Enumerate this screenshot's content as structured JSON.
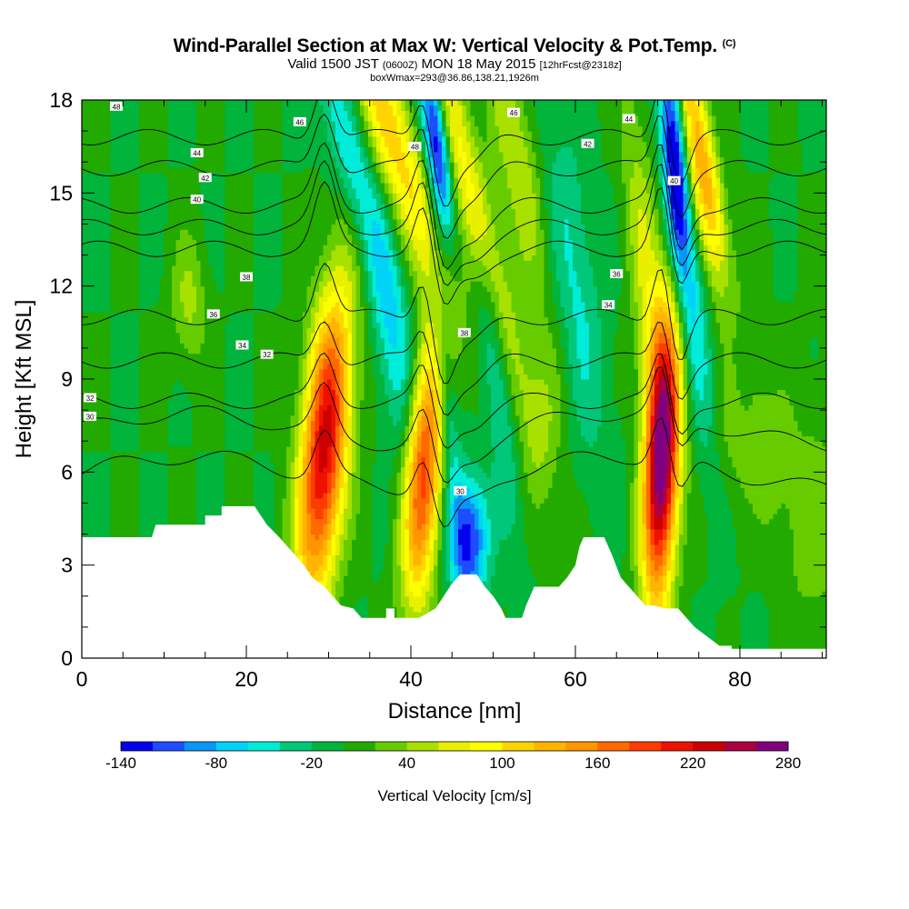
{
  "header": {
    "title_main": "Wind-Parallel Section at Max W: Vertical Velocity & Pot.Temp.",
    "title_mark": "(C)",
    "sub_valid": "Valid 1500 JST",
    "sub_utc": "(0600Z)",
    "sub_date": "MON 18 May 2015",
    "sub_fcst": "[12hrFcst@2318z]",
    "sub_box": "boxWmax=293@36.86,138.21,1926m"
  },
  "chart_data": {
    "type": "heatmap",
    "xlabel": "Distance [nm]",
    "ylabel": "Height [Kft MSL]",
    "xlim": [
      0,
      90.5
    ],
    "ylim": [
      0,
      18
    ],
    "x_ticks": [
      "0",
      "20",
      "40",
      "60",
      "80"
    ],
    "y_ticks": [
      "0",
      "3",
      "6",
      "9",
      "12",
      "15",
      "18"
    ],
    "colorbar": {
      "label": "Vertical Velocity [cm/s]",
      "tick_labels": [
        "-140",
        "-80",
        "-20",
        "40",
        "100",
        "160",
        "220",
        "280"
      ],
      "levels": [
        -140,
        -120,
        -100,
        -80,
        -60,
        -40,
        -20,
        0,
        20,
        40,
        60,
        80,
        100,
        120,
        140,
        160,
        180,
        200,
        220,
        240,
        260,
        280
      ],
      "colors": [
        "#0000ee",
        "#1e4cff",
        "#0a96f5",
        "#00d2f8",
        "#00ecd8",
        "#00c77a",
        "#00b43c",
        "#22aa00",
        "#66cc00",
        "#a8e000",
        "#e8f000",
        "#ffff00",
        "#ffd400",
        "#ffb400",
        "#ff9600",
        "#ff6a00",
        "#ff3c00",
        "#ee1100",
        "#cc0000",
        "#aa0044",
        "#800080"
      ]
    },
    "background_w": 0,
    "updrafts": [
      {
        "x": 29.5,
        "y": 6.8,
        "dx": 2.0,
        "dy": 3.6,
        "w": 230,
        "tilt": 0.3
      },
      {
        "x": 41.5,
        "y": 6.0,
        "dx": 1.6,
        "dy": 3.0,
        "w": 200,
        "tilt": 0.2
      },
      {
        "x": 70.5,
        "y": 6.5,
        "dx": 1.5,
        "dy": 3.4,
        "w": 280,
        "tilt": 0.15
      },
      {
        "x": 37.5,
        "y": 17.0,
        "dx": 2.2,
        "dy": 4.0,
        "w": 110,
        "tilt": -1.2
      },
      {
        "x": 47.0,
        "y": 15.5,
        "dx": 1.6,
        "dy": 5.0,
        "w": 90,
        "tilt": -0.9
      },
      {
        "x": 75.5,
        "y": 16.0,
        "dx": 1.6,
        "dy": 3.5,
        "w": 150,
        "tilt": -0.7
      },
      {
        "x": 53.0,
        "y": 16.0,
        "dx": 1.8,
        "dy": 3.0,
        "w": 60,
        "tilt": -0.6
      },
      {
        "x": 68.5,
        "y": 12.5,
        "dx": 1.4,
        "dy": 4.0,
        "w": 60,
        "tilt": -0.3
      },
      {
        "x": 13.0,
        "y": 11.5,
        "dx": 1.5,
        "dy": 1.5,
        "w": 45,
        "tilt": 0
      },
      {
        "x": 81.0,
        "y": 7.0,
        "dx": 3.0,
        "dy": 2.0,
        "w": 40,
        "tilt": -0.5
      },
      {
        "x": 56.0,
        "y": 8.0,
        "dx": 2.0,
        "dy": 2.0,
        "w": 35,
        "tilt": 0
      },
      {
        "x": 89.0,
        "y": 4.5,
        "dx": 3.0,
        "dy": 3.0,
        "w": 30,
        "tilt": 0
      }
    ],
    "downdrafts": [
      {
        "x": 43.0,
        "y": 16.8,
        "dx": 1.0,
        "dy": 2.4,
        "w": -150,
        "tilt": -0.4
      },
      {
        "x": 72.0,
        "y": 16.5,
        "dx": 1.0,
        "dy": 3.0,
        "w": -140,
        "tilt": -0.2
      },
      {
        "x": 47.0,
        "y": 3.8,
        "dx": 1.6,
        "dy": 1.4,
        "w": -130,
        "tilt": 0
      },
      {
        "x": 33.0,
        "y": 16.0,
        "dx": 1.8,
        "dy": 4.5,
        "w": -60,
        "tilt": -1.0
      },
      {
        "x": 50.5,
        "y": 9.0,
        "dx": 1.2,
        "dy": 3.5,
        "w": -55,
        "tilt": -0.4
      },
      {
        "x": 74.0,
        "y": 12.0,
        "dx": 1.3,
        "dy": 4.0,
        "w": -65,
        "tilt": -0.4
      },
      {
        "x": 60.0,
        "y": 12.0,
        "dx": 2.0,
        "dy": 4.0,
        "w": -45,
        "tilt": -0.4
      },
      {
        "x": 38.0,
        "y": 9.5,
        "dx": 1.5,
        "dy": 3.0,
        "w": -45,
        "tilt": -0.5
      },
      {
        "x": 44.5,
        "y": 8.0,
        "dx": 0.8,
        "dy": 3.0,
        "w": -50,
        "tilt": -0.3
      },
      {
        "x": 78.5,
        "y": 13.0,
        "dx": 1.2,
        "dy": 5.0,
        "w": -40,
        "tilt": -0.4
      }
    ],
    "terrain": [
      {
        "x": 0,
        "h": 3.9
      },
      {
        "x": 8.5,
        "h": 3.9
      },
      {
        "x": 9,
        "h": 4.3
      },
      {
        "x": 15,
        "h": 4.3
      },
      {
        "x": 15,
        "h": 4.6
      },
      {
        "x": 17,
        "h": 4.6
      },
      {
        "x": 17,
        "h": 4.9
      },
      {
        "x": 21,
        "h": 4.9
      },
      {
        "x": 22.5,
        "h": 4.3
      },
      {
        "x": 24,
        "h": 3.9
      },
      {
        "x": 25,
        "h": 3.6
      },
      {
        "x": 26,
        "h": 3.3
      },
      {
        "x": 27,
        "h": 3.0
      },
      {
        "x": 28,
        "h": 2.6
      },
      {
        "x": 29.5,
        "h": 2.3
      },
      {
        "x": 30.5,
        "h": 2.0
      },
      {
        "x": 31.5,
        "h": 1.7
      },
      {
        "x": 33,
        "h": 1.6
      },
      {
        "x": 34,
        "h": 1.3
      },
      {
        "x": 37,
        "h": 1.3
      },
      {
        "x": 37,
        "h": 1.6
      },
      {
        "x": 38,
        "h": 1.6
      },
      {
        "x": 38,
        "h": 1.3
      },
      {
        "x": 41,
        "h": 1.3
      },
      {
        "x": 43,
        "h": 1.6
      },
      {
        "x": 44,
        "h": 2.0
      },
      {
        "x": 45,
        "h": 2.4
      },
      {
        "x": 46,
        "h": 2.7
      },
      {
        "x": 48,
        "h": 2.7
      },
      {
        "x": 49,
        "h": 2.3
      },
      {
        "x": 50,
        "h": 2.0
      },
      {
        "x": 51,
        "h": 1.6
      },
      {
        "x": 51.5,
        "h": 1.3
      },
      {
        "x": 53.5,
        "h": 1.3
      },
      {
        "x": 54,
        "h": 1.7
      },
      {
        "x": 55,
        "h": 2.3
      },
      {
        "x": 58,
        "h": 2.3
      },
      {
        "x": 59,
        "h": 2.6
      },
      {
        "x": 60,
        "h": 3.0
      },
      {
        "x": 60.5,
        "h": 3.6
      },
      {
        "x": 61,
        "h": 3.9
      },
      {
        "x": 63.5,
        "h": 3.9
      },
      {
        "x": 64.5,
        "h": 3.3
      },
      {
        "x": 65.5,
        "h": 2.6
      },
      {
        "x": 66.5,
        "h": 2.3
      },
      {
        "x": 67.5,
        "h": 2.0
      },
      {
        "x": 68.5,
        "h": 1.7
      },
      {
        "x": 69.5,
        "h": 1.7
      },
      {
        "x": 71,
        "h": 1.6
      },
      {
        "x": 72.5,
        "h": 1.6
      },
      {
        "x": 73.5,
        "h": 1.3
      },
      {
        "x": 74.5,
        "h": 1.0
      },
      {
        "x": 75.5,
        "h": 0.8
      },
      {
        "x": 76.5,
        "h": 0.6
      },
      {
        "x": 77.5,
        "h": 0.4
      },
      {
        "x": 79,
        "h": 0.4
      },
      {
        "x": 79,
        "h": 0.3
      },
      {
        "x": 90.5,
        "h": 0.3
      }
    ],
    "theta_contours": [
      {
        "label": "30",
        "base": 6.0,
        "lx": 1,
        "ly": 7.8,
        "l2x": 46,
        "l2y": 5.4
      },
      {
        "label": "32",
        "base": 7.4,
        "lx": 1,
        "ly": 8.4,
        "l2x": 22.5,
        "l2y": 9.8
      },
      {
        "label": "34",
        "base": 8.3,
        "lx": 19.5,
        "ly": 10.1,
        "l2x": 64,
        "l2y": 11.4
      },
      {
        "label": "36",
        "base": 9.6,
        "lx": 16,
        "ly": 11.1,
        "l2x": 65,
        "l2y": 12.4
      },
      {
        "label": "38",
        "base": 11.0,
        "lx": 20,
        "ly": 12.3,
        "l2x": 46.5,
        "l2y": 10.5
      },
      {
        "label": "40",
        "base": 13.2,
        "lx": 14,
        "ly": 14.8,
        "l2x": 72,
        "l2y": 15.4
      },
      {
        "label": "42",
        "base": 13.9,
        "lx": 15,
        "ly": 15.5,
        "l2x": 61.5,
        "l2y": 16.6
      },
      {
        "label": "44",
        "base": 14.6,
        "lx": 14,
        "ly": 16.3,
        "l2x": 66.5,
        "l2y": 17.4
      },
      {
        "label": "46",
        "base": 15.8,
        "lx": 26.5,
        "ly": 17.3,
        "l2x": 52.5,
        "l2y": 17.6
      },
      {
        "label": "48",
        "base": 16.8,
        "lx": 4.2,
        "ly": 17.8,
        "l2x": 40.5,
        "l2y": 16.5
      }
    ]
  }
}
